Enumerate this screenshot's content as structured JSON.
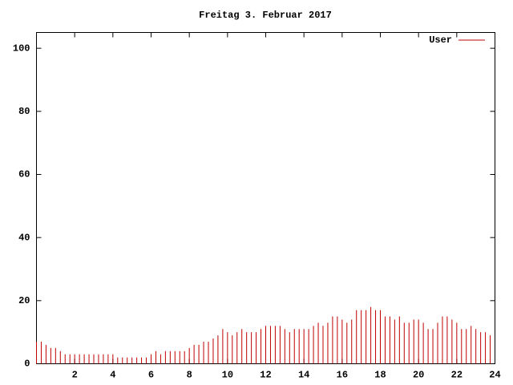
{
  "chart_data": {
    "type": "impulse",
    "title": "Freitag 3. Februar 2017",
    "x": [
      0,
      0.25,
      0.5,
      0.75,
      1,
      1.25,
      1.5,
      1.75,
      2,
      2.25,
      2.5,
      2.75,
      3,
      3.25,
      3.5,
      3.75,
      4,
      4.25,
      4.5,
      4.75,
      5,
      5.25,
      5.5,
      5.75,
      6,
      6.25,
      6.5,
      6.75,
      7,
      7.25,
      7.5,
      7.75,
      8,
      8.25,
      8.5,
      8.75,
      9,
      9.25,
      9.5,
      9.75,
      10,
      10.25,
      10.5,
      10.75,
      11,
      11.25,
      11.5,
      11.75,
      12,
      12.25,
      12.5,
      12.75,
      13,
      13.25,
      13.5,
      13.75,
      14,
      14.25,
      14.5,
      14.75,
      15,
      15.25,
      15.5,
      15.75,
      16,
      16.25,
      16.5,
      16.75,
      17,
      17.25,
      17.5,
      17.75,
      18,
      18.25,
      18.5,
      18.75,
      19,
      19.25,
      19.5,
      19.75,
      20,
      20.25,
      20.5,
      20.75,
      21,
      21.25,
      21.5,
      21.75,
      22,
      22.25,
      22.5,
      22.75,
      23,
      23.25,
      23.5,
      23.75
    ],
    "series": [
      {
        "name": "User",
        "color": "#c00000",
        "values": [
          7,
          7,
          6,
          5,
          5,
          4,
          3,
          3,
          3,
          3,
          3,
          3,
          3,
          3,
          3,
          3,
          3,
          2,
          2,
          2,
          2,
          2,
          2,
          2,
          3,
          4,
          3,
          4,
          4,
          4,
          4,
          4,
          5,
          6,
          6,
          7,
          7,
          8,
          9,
          11,
          10,
          9,
          10,
          11,
          10,
          10,
          10,
          11,
          12,
          12,
          12,
          12,
          11,
          10,
          11,
          11,
          11,
          11,
          12,
          13,
          12,
          13,
          15,
          15,
          14,
          13,
          14,
          17,
          17,
          17,
          18,
          17,
          17,
          15,
          15,
          14,
          15,
          13,
          13,
          14,
          14,
          13,
          11,
          11,
          13,
          15,
          15,
          14,
          13,
          11,
          11,
          12,
          11,
          10,
          10,
          9
        ]
      }
    ],
    "xlim": [
      0,
      24
    ],
    "xticks": [
      2,
      4,
      6,
      8,
      10,
      12,
      14,
      16,
      18,
      20,
      22,
      24
    ],
    "ylim": [
      0,
      105
    ],
    "yticks": [
      0,
      20,
      40,
      60,
      80,
      100
    ],
    "grid": false,
    "legend": "top-right"
  }
}
